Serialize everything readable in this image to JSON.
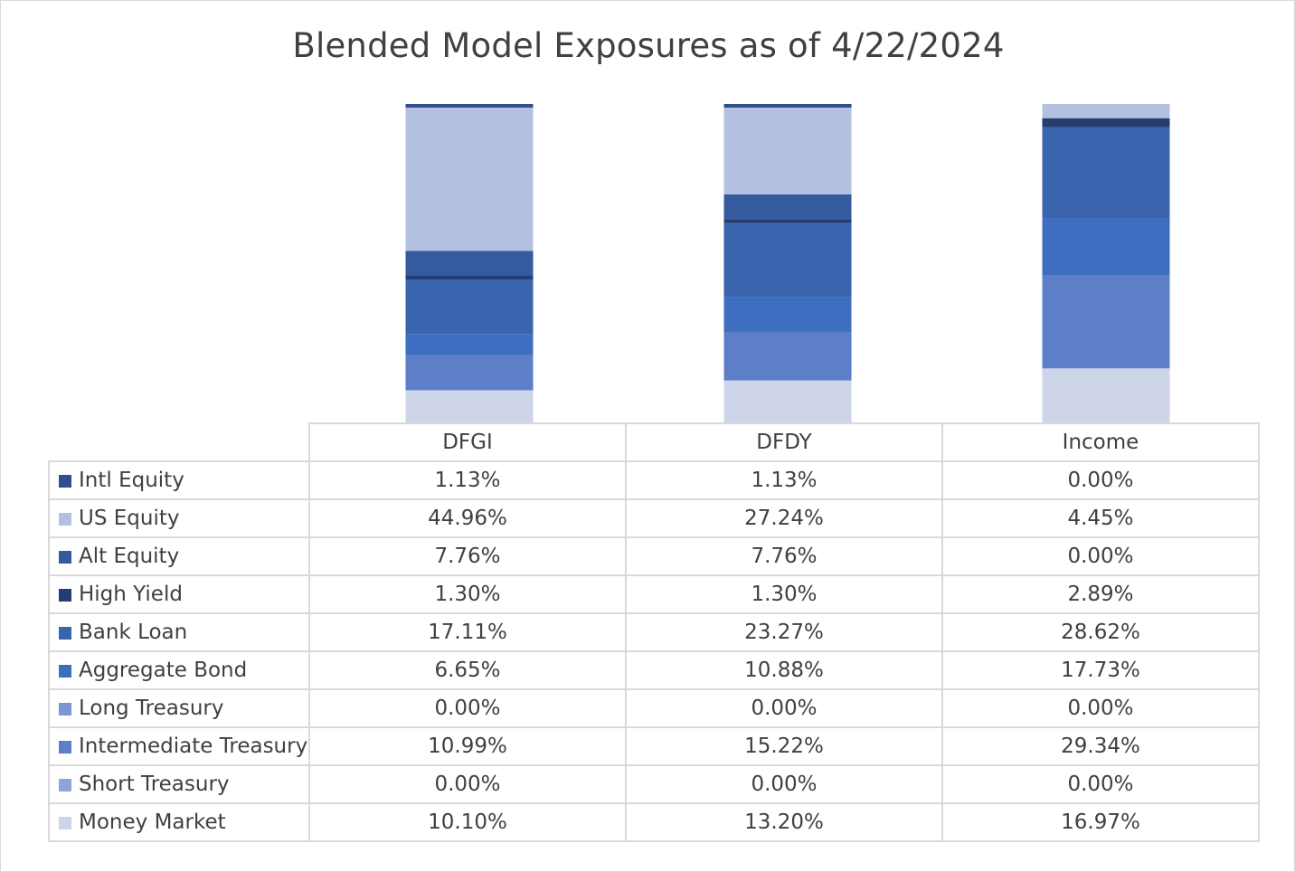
{
  "chart_data": {
    "type": "bar",
    "stacked": "100%",
    "title": "Blended Model Exposures as of 4/22/2024",
    "categories": [
      "DFGI",
      "DFDY",
      "Income"
    ],
    "stack_order_bottom_to_top": [
      "Money Market",
      "Short Treasury",
      "Intermediate Treasury",
      "Long Treasury",
      "Aggregate Bond",
      "Bank Loan",
      "High Yield",
      "Alt Equity",
      "US Equity",
      "Intl Equity"
    ],
    "series": [
      {
        "name": "Intl Equity",
        "color": "#2f4f8f",
        "values": [
          1.13,
          1.13,
          0.0
        ],
        "labels": [
          "1.13%",
          "1.13%",
          "0.00%"
        ]
      },
      {
        "name": "US Equity",
        "color": "#b4c0e0",
        "values": [
          44.96,
          27.24,
          4.45
        ],
        "labels": [
          "44.96%",
          "27.24%",
          "4.45%"
        ]
      },
      {
        "name": "Alt Equity",
        "color": "#355b9f",
        "values": [
          7.76,
          7.76,
          0.0
        ],
        "labels": [
          "7.76%",
          "7.76%",
          "0.00%"
        ]
      },
      {
        "name": "High Yield",
        "color": "#243e74",
        "values": [
          1.3,
          1.3,
          2.89
        ],
        "labels": [
          "1.30%",
          "1.30%",
          "2.89%"
        ]
      },
      {
        "name": "Bank Loan",
        "color": "#3a64ae",
        "values": [
          17.11,
          23.27,
          28.62
        ],
        "labels": [
          "17.11%",
          "23.27%",
          "28.62%"
        ]
      },
      {
        "name": "Aggregate Bond",
        "color": "#3d6ebf",
        "values": [
          6.65,
          10.88,
          17.73
        ],
        "labels": [
          "6.65%",
          "10.88%",
          "17.73%"
        ]
      },
      {
        "name": "Long Treasury",
        "color": "#7e96d0",
        "values": [
          0.0,
          0.0,
          0.0
        ],
        "labels": [
          "0.00%",
          "0.00%",
          "0.00%"
        ]
      },
      {
        "name": "Intermediate Treasury",
        "color": "#5d7fc7",
        "values": [
          10.99,
          15.22,
          29.34
        ],
        "labels": [
          "10.99%",
          "15.22%",
          "29.34%"
        ]
      },
      {
        "name": "Short Treasury",
        "color": "#8fa4d7",
        "values": [
          0.0,
          0.0,
          0.0
        ],
        "labels": [
          "0.00%",
          "0.00%",
          "0.00%"
        ]
      },
      {
        "name": "Money Market",
        "color": "#ced5e9",
        "values": [
          10.1,
          13.2,
          16.97
        ],
        "labels": [
          "10.10%",
          "13.20%",
          "16.97%"
        ]
      }
    ],
    "legend": "data-table",
    "grid": false
  }
}
